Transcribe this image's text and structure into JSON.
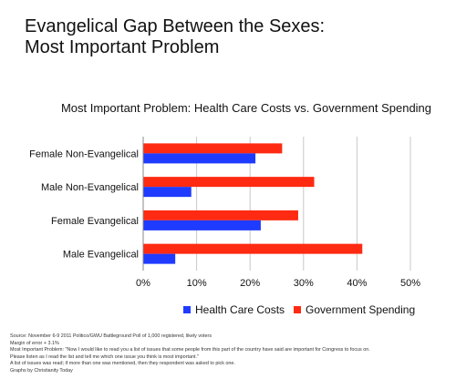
{
  "page": {
    "title_line1": "Evangelical Gap Between the Sexes:",
    "title_line2": "Most Important Problem"
  },
  "chart_data": {
    "type": "bar",
    "orientation": "horizontal",
    "title": "Most Important Problem: Health Care Costs vs. Government Spending",
    "categories": [
      "Female Non-Evangelical",
      "Male Non-Evangelical",
      "Female Evangelical",
      "Male Evangelical"
    ],
    "series": [
      {
        "name": "Health Care Costs",
        "color": "#1f3bff",
        "values": [
          21,
          9,
          22,
          6
        ]
      },
      {
        "name": "Government Spending",
        "color": "#ff2a12",
        "values": [
          26,
          32,
          29,
          41
        ]
      }
    ],
    "xlim": [
      0,
      50
    ],
    "xticks": [
      "0%",
      "10%",
      "20%",
      "30%",
      "40%",
      "50%"
    ],
    "grid": true,
    "legend_position": "bottom"
  },
  "footer": {
    "lines": [
      "Source: November 6-9 2011 Politico/GWU Battleground Poll of 1,000 registered, likely voters",
      "Margin of error + 3.1%",
      "Most Important Problem: \"Now I would like to read you a list of issues that some people from this part of the country have said are important for Congress to focus on.",
      "Please listen as I read the list and tell me which one issue you think is most important.\"",
      "A list of issues was read; if more than one was mentioned, then they respondent was asked to pick one.",
      "Graphs by Christianity Today"
    ]
  }
}
